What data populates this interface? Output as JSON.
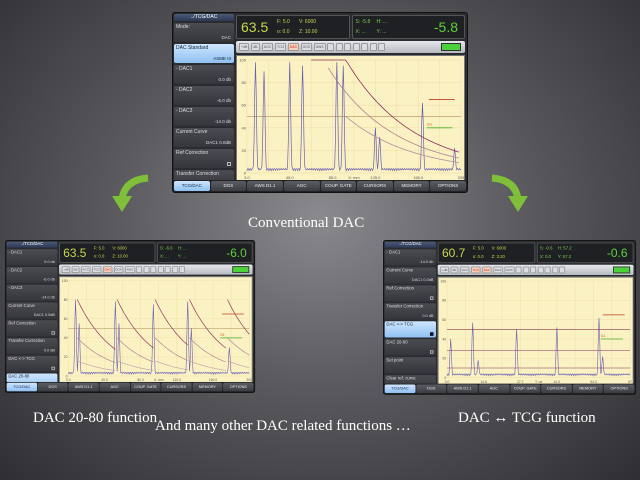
{
  "captions": {
    "top": "Conventional DAC",
    "left": "DAC 20-80 function",
    "right": "DAC ↔ TCG function",
    "bottom": "And many other DAC related functions …"
  },
  "colors": {
    "arrow": "#7fbf3a",
    "plot_bg": "#fbf2c4",
    "trace": "#6a5fb0",
    "dac_curve": "#8a2f5e",
    "reading": "#5fd23a"
  },
  "devices": [
    {
      "id": "conventional",
      "sidebar_title": "../TCG/DAC",
      "sidebar": [
        {
          "label": "Mode:",
          "value": "DAC"
        },
        {
          "label": "DAC Standard",
          "value": "ASME III",
          "selected": true
        },
        {
          "label": "- DAC1",
          "value": "0.0 db"
        },
        {
          "label": "- DAC2",
          "value": "-6.0 db"
        },
        {
          "label": "- DAC3",
          "value": "-14.0 db"
        },
        {
          "label": "Current Curve",
          "value": "DAC1  0.0dB"
        },
        {
          "label": "Ref Correction",
          "checkbox": true
        },
        {
          "label": "Transfer Correction",
          "value": "0.0 dB"
        }
      ],
      "header": {
        "gain": "63.5",
        "f": "F: 5.0",
        "v": "V: 6000",
        "o": "o: 0.0",
        "z": "Z: 10.00",
        "s": "S: -5.8",
        "h": "H: ...",
        "x": "X: ...",
        "y": "Y: ...",
        "reading": "-5.8"
      },
      "x_ticks": [
        "3.0",
        "45.0",
        "85.0",
        "125.0",
        "165.0",
        "205"
      ],
      "x_unit": "X: mm",
      "mode": "conv"
    },
    {
      "id": "dac2080",
      "sidebar_title": "../TCG/DAC",
      "sidebar": [
        {
          "label": "- DAC1",
          "value": "0.0 db"
        },
        {
          "label": "- DAC2",
          "value": "-6.0 db"
        },
        {
          "label": "- DAC3",
          "value": "-14.0 db"
        },
        {
          "label": "Current Curve",
          "value": "DAC1  0.0dB"
        },
        {
          "label": "Ref Correction",
          "checkbox": true
        },
        {
          "label": "Transfer Correction",
          "value": "0.0 dB"
        },
        {
          "label": "DAC <-> TCG",
          "checkbox": true
        },
        {
          "label": "DAC 20-80",
          "checkbox": true,
          "selected": true
        }
      ],
      "header": {
        "gain": "63.5",
        "f": "F: 5.0",
        "v": "V: 6000",
        "o": "o: 0.0",
        "z": "Z: 10.00",
        "s": "S: -6.0",
        "h": "H: ...",
        "x": "X: ...",
        "y": "Y: ...",
        "reading": "-6.0"
      },
      "x_ticks": [
        "0.0",
        "40.0",
        "80.0",
        "120.0",
        "160.0",
        "200"
      ],
      "x_unit": "X: mm",
      "mode": "2080"
    },
    {
      "id": "dactcg",
      "sidebar_title": "../TCG/DAC",
      "sidebar": [
        {
          "label": "- DAC1",
          "value": "-14.0 db"
        },
        {
          "label": "Current Curve",
          "value": "DAC1  0.0dB"
        },
        {
          "label": "Ref Correction",
          "checkbox": true
        },
        {
          "label": "Transfer Correction",
          "value": "0.0 dB"
        },
        {
          "label": "DAC <-> TCG",
          "checkbox": true,
          "selected": true
        },
        {
          "label": "DAC 20-80",
          "checkbox": true
        },
        {
          "label": "Set point"
        },
        {
          "label": "Clear ref. curve"
        }
      ],
      "header": {
        "gain": "60.7",
        "f": "F: 5.0",
        "v": "V: 6000",
        "o": "o: 0.0",
        "z": "Z: 3.20",
        "s": "S: -0.6",
        "h": "H: 57.2",
        "x": "X: 0.0",
        "y": "Y: 57.2",
        "reading": "-0.6"
      },
      "x_ticks": [
        "0.0",
        "14.5",
        "27.7",
        "41.0",
        "54.3",
        "67"
      ],
      "x_unit": "T: us",
      "mode": "tcg"
    }
  ],
  "y_ticks": [
    "0",
    "20",
    "40",
    "60",
    "80",
    "100"
  ],
  "gate_label": "G1",
  "toolbar": [
    "+dB",
    "dB-",
    "AGC",
    "TCG",
    "DAC",
    "DGS",
    "AWS"
  ],
  "toolbar_active": [
    "DAC"
  ],
  "tabs": [
    "TCG/DAC",
    "DGS",
    "AWS D1.1",
    "AGC",
    "COUP. GATE",
    "CURSORS",
    "MEMORY",
    "OPTIONS"
  ]
}
